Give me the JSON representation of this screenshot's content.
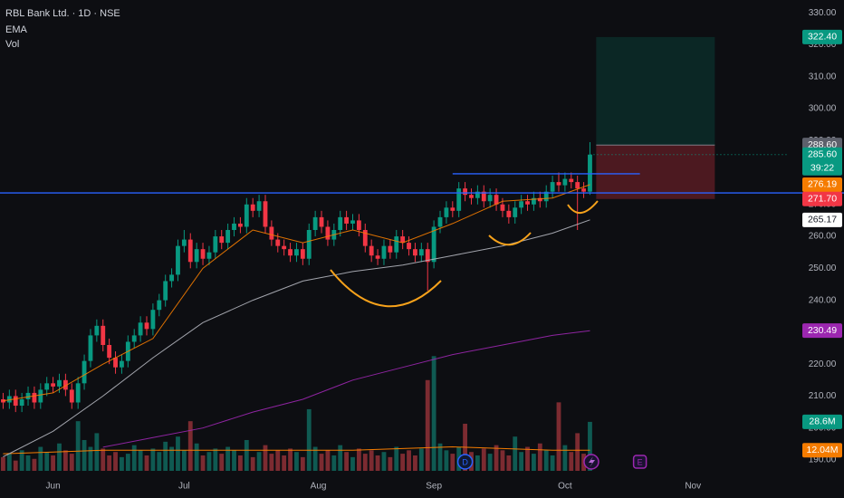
{
  "header": {
    "symbol": "RBL Bank Ltd. · 1D · NSE",
    "indicators": [
      "EMA",
      "Vol"
    ]
  },
  "chart_data": {
    "type": "candlestick",
    "x": [
      0,
      1,
      2,
      3,
      4,
      5,
      6,
      7,
      8,
      9,
      10,
      11,
      12,
      13,
      14,
      15,
      16,
      17,
      18,
      19,
      20,
      21,
      22,
      23,
      24,
      25,
      26,
      27,
      28,
      29,
      30,
      31,
      32,
      33,
      34,
      35,
      36,
      37,
      38,
      39,
      40,
      41,
      42,
      43,
      44,
      45,
      46,
      47,
      48,
      49,
      50,
      51,
      52,
      53,
      54,
      55,
      56,
      57,
      58,
      59,
      60,
      61,
      62,
      63,
      64,
      65,
      66,
      67,
      68,
      69,
      70,
      71,
      72,
      73,
      74,
      75,
      76,
      77,
      78,
      79,
      80,
      81,
      82,
      83,
      84,
      85,
      86,
      87,
      88,
      89,
      90,
      91,
      92,
      93,
      94
    ],
    "open": [
      209,
      208,
      210,
      207,
      209,
      211,
      208,
      212,
      214,
      213,
      215,
      212,
      208,
      214,
      221,
      229,
      232,
      226,
      222,
      219,
      221,
      227,
      229,
      233,
      231,
      237,
      240,
      246,
      248,
      257,
      259,
      252,
      256,
      253,
      255,
      260,
      258,
      262,
      264,
      263,
      270,
      268,
      271,
      263,
      259,
      257,
      256,
      254,
      256,
      253,
      262,
      266,
      263,
      259,
      262,
      266,
      264,
      265,
      262,
      257,
      254,
      253,
      257,
      255,
      260,
      258,
      256,
      254,
      256,
      252,
      263,
      266,
      269,
      268,
      275,
      273,
      272,
      274,
      271,
      273,
      270,
      268,
      266,
      269,
      271,
      270,
      272,
      271,
      274,
      277,
      276,
      278,
      277,
      275,
      274
    ],
    "high": [
      211,
      212,
      212,
      211,
      213,
      213,
      214,
      216,
      216,
      217,
      217,
      214,
      216,
      223,
      231,
      234,
      234,
      228,
      224,
      223,
      229,
      231,
      235,
      235,
      239,
      242,
      248,
      250,
      259,
      262,
      261,
      258,
      258,
      257,
      262,
      262,
      264,
      266,
      266,
      272,
      272,
      273,
      273,
      265,
      261,
      259,
      258,
      258,
      258,
      264,
      268,
      268,
      265,
      264,
      268,
      268,
      267,
      267,
      264,
      259,
      256,
      259,
      259,
      262,
      262,
      260,
      258,
      258,
      258,
      265,
      268,
      271,
      271,
      277,
      277,
      275,
      276,
      276,
      275,
      275,
      272,
      270,
      271,
      273,
      273,
      274,
      274,
      276,
      279,
      280,
      280,
      280,
      279,
      277,
      289.5
    ],
    "low": [
      206,
      206,
      205,
      205,
      207,
      206,
      206,
      210,
      211,
      211,
      210,
      206,
      206,
      212,
      219,
      227,
      224,
      220,
      217,
      217,
      219,
      225,
      227,
      229,
      229,
      235,
      238,
      244,
      246,
      255,
      250,
      250,
      251,
      251,
      253,
      256,
      256,
      260,
      261,
      261,
      266,
      266,
      261,
      257,
      255,
      254,
      252,
      252,
      251,
      251,
      260,
      261,
      257,
      257,
      260,
      262,
      262,
      260,
      255,
      252,
      251,
      251,
      253,
      253,
      256,
      254,
      252,
      252,
      243,
      250,
      261,
      264,
      266,
      266,
      271,
      270,
      270,
      269,
      269,
      268,
      266,
      264,
      264,
      267,
      268,
      268,
      269,
      269,
      272,
      274,
      274,
      275,
      262,
      272,
      273
    ],
    "close": [
      208,
      210,
      207,
      209,
      211,
      208,
      212,
      214,
      213,
      215,
      212,
      208,
      214,
      221,
      229,
      232,
      226,
      222,
      219,
      221,
      227,
      229,
      233,
      231,
      237,
      240,
      246,
      248,
      257,
      259,
      252,
      256,
      253,
      255,
      260,
      258,
      262,
      264,
      263,
      270,
      268,
      271,
      263,
      259,
      257,
      256,
      254,
      256,
      253,
      262,
      266,
      263,
      259,
      262,
      266,
      264,
      265,
      262,
      257,
      254,
      253,
      257,
      255,
      260,
      258,
      256,
      254,
      256,
      252,
      263,
      266,
      269,
      268,
      275,
      273,
      272,
      274,
      271,
      273,
      270,
      268,
      266,
      269,
      271,
      270,
      272,
      271,
      274,
      277,
      276,
      278,
      277,
      275,
      274,
      285.6
    ],
    "last_label": "285.60",
    "countdown": "39:22",
    "volume": [
      8,
      10,
      6,
      12,
      9,
      7,
      14,
      11,
      9,
      16,
      12,
      10,
      29,
      18,
      14,
      22,
      13,
      9,
      11,
      8,
      10,
      15,
      12,
      9,
      13,
      11,
      17,
      14,
      20,
      12,
      29,
      16,
      9,
      11,
      13,
      10,
      14,
      12,
      9,
      18,
      8,
      11,
      15,
      10,
      12,
      9,
      13,
      11,
      8,
      36,
      14,
      10,
      12,
      9,
      15,
      11,
      8,
      13,
      10,
      12,
      9,
      11,
      8,
      14,
      10,
      12,
      9,
      13,
      53,
      67,
      16,
      12,
      10,
      14,
      27.5,
      11,
      9,
      13,
      10,
      15,
      12,
      9,
      20,
      11,
      14,
      10,
      16,
      12,
      9,
      40,
      15,
      11,
      22,
      10,
      28.6
    ],
    "volume_last_label": "28.6M",
    "colors": {
      "up": "#089981",
      "down": "#f23645",
      "up_volume": "#0f5a52",
      "down_volume": "#7c2b31"
    },
    "ema_x": [
      0,
      8,
      16,
      24,
      32,
      40,
      48,
      56,
      64,
      72,
      80,
      88,
      94
    ],
    "ema": [
      {
        "color": "#f57c00",
        "values": [
          208.5,
          211,
          220,
          228,
          250,
          262,
          258,
          262,
          258,
          264,
          271,
          272,
          276.19
        ],
        "last_label": "276.19",
        "label_bg": "#f57c00",
        "label_fg": "#ffffff"
      },
      {
        "color": "#b2b5be",
        "values": [
          191,
          199,
          210,
          222,
          233,
          240,
          246,
          249,
          251,
          254,
          257,
          261,
          265.17
        ],
        "last_label": "265.17",
        "label_bg": "#ffffff",
        "label_fg": "#131722"
      },
      {
        "color": "#9c27b0",
        "values": [
          null,
          null,
          194,
          197,
          200,
          205,
          209,
          215,
          219,
          223,
          226,
          229,
          230.49
        ],
        "last_label": "230.49",
        "label_bg": "#9c27b0",
        "label_fg": "#ffffff"
      }
    ],
    "volume_ma": {
      "color": "#f57c00",
      "values": [
        10,
        11,
        12,
        12,
        12,
        12,
        12,
        12,
        13,
        14,
        13,
        12,
        12.04
      ],
      "last_label": "12.04M"
    },
    "position": {
      "x": [
        95,
        114
      ],
      "target": {
        "value": 322.4,
        "label": "322.40"
      },
      "entry": {
        "value": 288.6,
        "label": "288.60"
      },
      "stop": {
        "value": 271.7,
        "label": "271.70"
      }
    },
    "lines": [
      {
        "value": 273.6,
        "color": "#2962ff"
      },
      {
        "value": 279.6,
        "x": [
          72,
          102
        ],
        "color": "#2962ff"
      }
    ],
    "events": [
      {
        "label": "D",
        "x": 74,
        "color": "#2962ff"
      },
      {
        "label": "E",
        "x": 102,
        "color": "#9c27b0"
      }
    ],
    "xlim": [
      -0.5,
      125.7
    ],
    "xticks": [
      {
        "value": 8,
        "label": "Jun"
      },
      {
        "value": 29,
        "label": "Jul"
      },
      {
        "value": 50.5,
        "label": "Aug"
      },
      {
        "value": 69,
        "label": "Sep"
      },
      {
        "value": 90,
        "label": "Oct"
      },
      {
        "value": 110.5,
        "label": "Nov"
      }
    ],
    "ylim": [
      186.6,
      334
    ],
    "yticks": [
      {
        "value": 190,
        "label": "190.00"
      },
      {
        "value": 200,
        "label": "200.00"
      },
      {
        "value": 210,
        "label": "210.00"
      },
      {
        "value": 220,
        "label": "220.00"
      },
      {
        "value": 230,
        "label": "230.00"
      },
      {
        "value": 240,
        "label": "240.00"
      },
      {
        "value": 250,
        "label": "250.00"
      },
      {
        "value": 260,
        "label": "260.00"
      },
      {
        "value": 270,
        "label": "270.00"
      },
      {
        "value": 280,
        "label": "280.00"
      },
      {
        "value": 290,
        "label": "290.00"
      },
      {
        "value": 300,
        "label": "300.00"
      },
      {
        "value": 310,
        "label": "310.00"
      },
      {
        "value": 320,
        "label": "320.00"
      },
      {
        "value": 330,
        "label": "330.00"
      }
    ],
    "y2lim": [
      0,
      275
    ],
    "grid": false
  }
}
